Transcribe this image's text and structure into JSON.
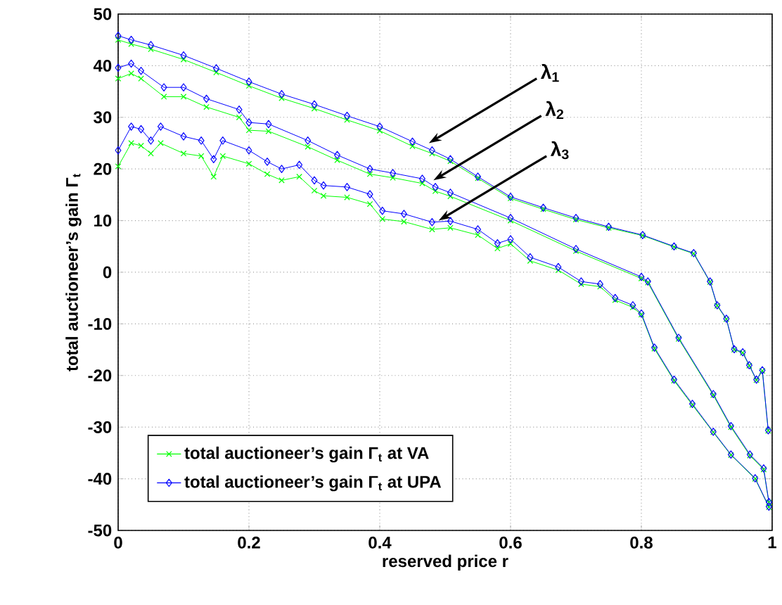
{
  "chart_data": {
    "type": "line",
    "xlabel": "reserved price r",
    "ylabel": "total auctioneer’s gain Γ$_{t}$",
    "xlim": [
      0,
      1
    ],
    "ylim": [
      -50,
      50
    ],
    "xticks": [
      0,
      0.2,
      0.4,
      0.6,
      0.8,
      1
    ],
    "yticks": [
      -50,
      -40,
      -30,
      -20,
      -10,
      0,
      10,
      20,
      30,
      40,
      50
    ],
    "grid": true,
    "legend": "bottom left",
    "series": [
      {
        "name": "total auctioneer’s gain Γ$_{t}$ at VA",
        "color": "#00ff00",
        "marker": "cross",
        "x": [
          0,
          0.02,
          0.05,
          0.1,
          0.15,
          0.2,
          0.25,
          0.3,
          0.35,
          0.4,
          0.45,
          0.48,
          0.508,
          0.55,
          0.6,
          0.65,
          0.7,
          0.75,
          0.802,
          0.85,
          0.88,
          0.905,
          0.916,
          0.93,
          0.942,
          0.955,
          0.965,
          0.976,
          0.985,
          0.994
        ],
        "values": [
          45,
          44.2,
          43.2,
          41.2,
          38.7,
          36.1,
          33.7,
          31.7,
          29.5,
          27.4,
          24.4,
          23,
          21.5,
          18.2,
          14.3,
          12.2,
          10.2,
          8.6,
          7.1,
          4.9,
          3.6,
          -1.9,
          -6.5,
          -9.1,
          -15,
          -15.6,
          -18.1,
          -20.9,
          -19.1,
          -30.7
        ]
      },
      {
        "name": "total auctioneer’s gain Γ$_{t}$ at UPA",
        "color": "#0000ff",
        "marker": "diamond",
        "x": [
          0,
          0.02,
          0.05,
          0.1,
          0.15,
          0.2,
          0.25,
          0.3,
          0.35,
          0.4,
          0.45,
          0.48,
          0.508,
          0.55,
          0.6,
          0.65,
          0.7,
          0.75,
          0.802,
          0.85,
          0.88,
          0.905,
          0.916,
          0.93,
          0.942,
          0.955,
          0.965,
          0.976,
          0.985,
          0.994
        ],
        "values": [
          45.8,
          45,
          44,
          42,
          39.5,
          36.9,
          34.5,
          32.5,
          30.3,
          28.2,
          25.3,
          23.6,
          21.9,
          18.5,
          14.6,
          12.5,
          10.5,
          8.8,
          7.2,
          5,
          3.7,
          -1.8,
          -6.4,
          -9,
          -14.9,
          -15.5,
          -18,
          -20.8,
          -19,
          -30.6
        ]
      },
      {
        "color": "#00ff00",
        "marker": "cross",
        "x": [
          0,
          0.02,
          0.035,
          0.07,
          0.1,
          0.135,
          0.185,
          0.2,
          0.23,
          0.29,
          0.335,
          0.385,
          0.42,
          0.465,
          0.485,
          0.508,
          0.6,
          0.7,
          0.8,
          0.81,
          0.857,
          0.91,
          0.937,
          0.966,
          0.987,
          0.995
        ],
        "values": [
          37.5,
          38.5,
          37.5,
          34,
          34,
          32,
          30,
          27.5,
          27.3,
          24.3,
          21.7,
          19,
          18.3,
          17.2,
          15.7,
          14.7,
          10,
          4.1,
          -1.2,
          -2,
          -12.9,
          -23.8,
          -30,
          -35.5,
          -38.2,
          -44.6
        ]
      },
      {
        "color": "#0000ff",
        "marker": "diamond",
        "x": [
          0,
          0.02,
          0.035,
          0.07,
          0.1,
          0.135,
          0.185,
          0.2,
          0.23,
          0.29,
          0.335,
          0.385,
          0.42,
          0.465,
          0.485,
          0.508,
          0.6,
          0.7,
          0.8,
          0.81,
          0.857,
          0.91,
          0.937,
          0.966,
          0.987,
          0.995
        ],
        "values": [
          39.6,
          40.4,
          39,
          35.8,
          35.8,
          33.6,
          31.5,
          29,
          28.7,
          25.5,
          22.7,
          20,
          19.2,
          18.1,
          16.5,
          15.4,
          10.5,
          4.5,
          -0.9,
          -1.8,
          -12.7,
          -23.6,
          -29.8,
          -35.3,
          -38,
          -44.5
        ]
      },
      {
        "color": "#00ff00",
        "marker": "cross",
        "x": [
          0,
          0.02,
          0.035,
          0.05,
          0.065,
          0.1,
          0.127,
          0.146,
          0.16,
          0.2,
          0.228,
          0.25,
          0.277,
          0.3,
          0.314,
          0.35,
          0.385,
          0.404,
          0.437,
          0.48,
          0.508,
          0.55,
          0.58,
          0.6,
          0.63,
          0.673,
          0.708,
          0.737,
          0.76,
          0.787,
          0.8,
          0.82,
          0.85,
          0.878,
          0.91,
          0.937,
          0.974,
          0.995
        ],
        "values": [
          20.5,
          25,
          24.5,
          23,
          25,
          23,
          22.5,
          18.5,
          22.5,
          21,
          19,
          17.8,
          18.5,
          15.8,
          14.8,
          14.5,
          13.2,
          10.3,
          9.8,
          8.3,
          8.6,
          7.2,
          4.6,
          5.5,
          2.2,
          0.4,
          -2.3,
          -2.8,
          -5.4,
          -6.8,
          -8.2,
          -14.8,
          -21,
          -25.7,
          -31,
          -35.4,
          -40,
          -45.5
        ]
      },
      {
        "color": "#0000ff",
        "marker": "diamond",
        "x": [
          0,
          0.02,
          0.035,
          0.05,
          0.065,
          0.1,
          0.127,
          0.146,
          0.16,
          0.2,
          0.228,
          0.25,
          0.277,
          0.3,
          0.314,
          0.35,
          0.385,
          0.404,
          0.437,
          0.48,
          0.508,
          0.55,
          0.58,
          0.6,
          0.63,
          0.673,
          0.708,
          0.737,
          0.76,
          0.787,
          0.8,
          0.82,
          0.85,
          0.878,
          0.91,
          0.937,
          0.974,
          0.995
        ],
        "values": [
          23.6,
          28.2,
          27.7,
          25.5,
          28.2,
          26.3,
          25.5,
          21.9,
          25.5,
          23.6,
          21.4,
          20,
          20.8,
          17.8,
          16.8,
          16.5,
          15.1,
          11.9,
          11.3,
          9.7,
          9.9,
          8.3,
          5.6,
          6.4,
          2.9,
          1,
          -1.8,
          -2.3,
          -5,
          -6.4,
          -8,
          -14.6,
          -20.8,
          -25.5,
          -30.9,
          -35.3,
          -39.9,
          -45.4
        ]
      }
    ],
    "annotations": [
      {
        "text": "λ$_{1}$",
        "x": 0.475,
        "y": 25
      },
      {
        "text": "λ$_{2}$",
        "x": 0.482,
        "y": 17.8
      },
      {
        "text": "λ$_{3}$",
        "x": 0.49,
        "y": 10
      }
    ]
  }
}
